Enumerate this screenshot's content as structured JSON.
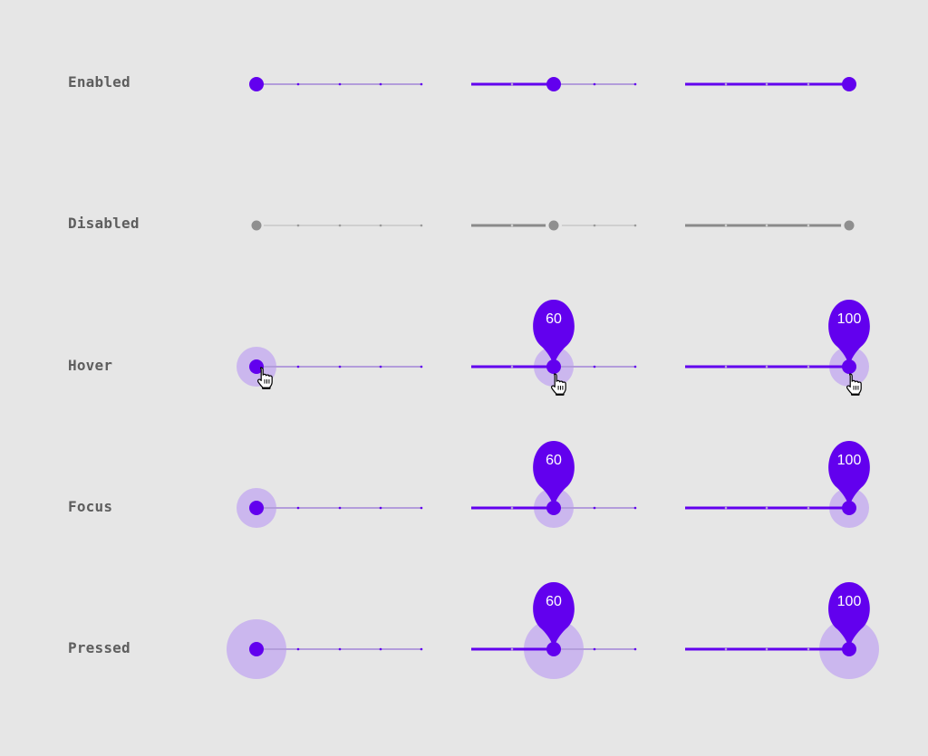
{
  "labels": {
    "enabled": "Enabled",
    "disabled": "Disabled",
    "hover": "Hover",
    "focus": "Focus",
    "pressed": "Pressed"
  },
  "slider_values": {
    "min": 0,
    "max": 100,
    "step": 20,
    "columns": [
      0,
      60,
      100
    ]
  },
  "value_labels": {
    "hover_mid": "60",
    "hover_max": "100",
    "focus_mid": "60",
    "focus_max": "100",
    "pressed_mid": "60",
    "pressed_max": "100"
  },
  "colors": {
    "accent": "#6200ee",
    "accent_light": "#b39ddb",
    "halo": "#cbb7ee",
    "disabled_active": "#8a8a8a",
    "disabled_track": "#cfcfcf",
    "disabled_thumb": "#8f8f8f",
    "background": "#e6e6e6",
    "label_text": "#5e5e5e"
  },
  "icons": {
    "cursor": "hand-pointer-icon"
  }
}
